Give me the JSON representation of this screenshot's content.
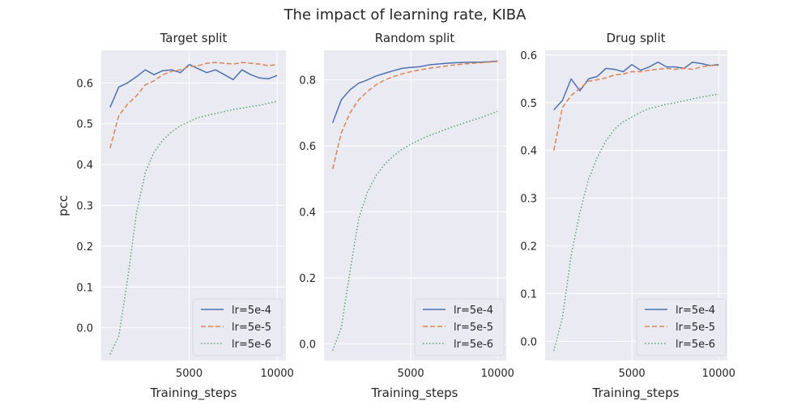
{
  "chart_data": {
    "suptitle": "The impact of learning rate, KIBA",
    "ylabel": "pcc",
    "legend_entries": [
      "lr=5e-4",
      "lr=5e-5",
      "lr=5e-6"
    ],
    "legend_placement": "lower-right",
    "series_colors": [
      "#4c72b0",
      "#dd8452",
      "#55a868"
    ],
    "series_styles": [
      "solid",
      "dashed",
      "dotted"
    ],
    "panels": [
      {
        "type": "line",
        "title": "Target split",
        "xlabel": "Training_steps",
        "xlim": [
          0,
          10500
        ],
        "ylim": [
          -0.08,
          0.68
        ],
        "xticks": [
          5000,
          10000
        ],
        "xtick_labels": [
          "5000",
          "10000"
        ],
        "yticks": [
          0.0,
          0.1,
          0.2,
          0.3,
          0.4,
          0.5,
          0.6
        ],
        "ytick_labels": [
          "0.0",
          "0.1",
          "0.2",
          "0.3",
          "0.4",
          "0.5",
          "0.6"
        ],
        "x": [
          500,
          1000,
          1500,
          2000,
          2500,
          3000,
          3500,
          4000,
          4500,
          5000,
          5500,
          6000,
          6500,
          7000,
          7500,
          8000,
          8500,
          9000,
          9500,
          10000
        ],
        "series": [
          {
            "name": "lr=5e-4",
            "values": [
              0.54,
              0.59,
              0.6,
              0.615,
              0.632,
              0.62,
              0.63,
              0.632,
              0.625,
              0.645,
              0.635,
              0.625,
              0.632,
              0.62,
              0.608,
              0.632,
              0.62,
              0.612,
              0.61,
              0.618
            ]
          },
          {
            "name": "lr=5e-5",
            "values": [
              0.44,
              0.52,
              0.548,
              0.568,
              0.595,
              0.605,
              0.62,
              0.628,
              0.632,
              0.64,
              0.642,
              0.648,
              0.65,
              0.648,
              0.646,
              0.65,
              0.648,
              0.646,
              0.642,
              0.645
            ]
          },
          {
            "name": "lr=5e-6",
            "values": [
              -0.065,
              -0.02,
              0.12,
              0.28,
              0.38,
              0.43,
              0.46,
              0.48,
              0.495,
              0.505,
              0.515,
              0.52,
              0.525,
              0.53,
              0.535,
              0.538,
              0.542,
              0.545,
              0.55,
              0.555
            ]
          }
        ]
      },
      {
        "type": "line",
        "title": "Random split",
        "xlabel": "Training_steps",
        "xlim": [
          0,
          10500
        ],
        "ylim": [
          -0.05,
          0.89
        ],
        "xticks": [
          5000,
          10000
        ],
        "xtick_labels": [
          "5000",
          "10000"
        ],
        "yticks": [
          0.0,
          0.2,
          0.4,
          0.6,
          0.8
        ],
        "ytick_labels": [
          "0.0",
          "0.2",
          "0.4",
          "0.6",
          "0.8"
        ],
        "x": [
          500,
          1000,
          1500,
          2000,
          2500,
          3000,
          3500,
          4000,
          4500,
          5000,
          5500,
          6000,
          6500,
          7000,
          7500,
          8000,
          8500,
          9000,
          9500,
          10000
        ],
        "series": [
          {
            "name": "lr=5e-4",
            "values": [
              0.67,
              0.74,
              0.77,
              0.79,
              0.8,
              0.812,
              0.82,
              0.828,
              0.835,
              0.838,
              0.84,
              0.845,
              0.848,
              0.85,
              0.852,
              0.853,
              0.854,
              0.854,
              0.855,
              0.857
            ]
          },
          {
            "name": "lr=5e-5",
            "values": [
              0.53,
              0.64,
              0.7,
              0.74,
              0.765,
              0.785,
              0.8,
              0.81,
              0.818,
              0.825,
              0.83,
              0.835,
              0.838,
              0.842,
              0.845,
              0.848,
              0.85,
              0.852,
              0.854,
              0.856
            ]
          },
          {
            "name": "lr=5e-6",
            "values": [
              -0.02,
              0.05,
              0.22,
              0.38,
              0.46,
              0.51,
              0.545,
              0.57,
              0.59,
              0.605,
              0.618,
              0.63,
              0.64,
              0.65,
              0.66,
              0.668,
              0.677,
              0.685,
              0.695,
              0.705
            ]
          }
        ]
      },
      {
        "type": "line",
        "title": "Drug split",
        "xlabel": "Training_steps",
        "xlim": [
          0,
          10500
        ],
        "ylim": [
          -0.04,
          0.61
        ],
        "xticks": [
          5000,
          10000
        ],
        "xtick_labels": [
          "5000",
          "10000"
        ],
        "yticks": [
          0.0,
          0.1,
          0.2,
          0.3,
          0.4,
          0.5,
          0.6
        ],
        "ytick_labels": [
          "0.0",
          "0.1",
          "0.2",
          "0.3",
          "0.4",
          "0.5",
          "0.6"
        ],
        "x": [
          500,
          1000,
          1500,
          2000,
          2500,
          3000,
          3500,
          4000,
          4500,
          5000,
          5500,
          6000,
          6500,
          7000,
          7500,
          8000,
          8500,
          9000,
          9500,
          10000
        ],
        "series": [
          {
            "name": "lr=5e-4",
            "values": [
              0.485,
              0.505,
              0.55,
              0.525,
              0.55,
              0.555,
              0.572,
              0.57,
              0.565,
              0.58,
              0.568,
              0.575,
              0.585,
              0.575,
              0.575,
              0.572,
              0.585,
              0.582,
              0.578,
              0.58
            ]
          },
          {
            "name": "lr=5e-5",
            "values": [
              0.4,
              0.49,
              0.515,
              0.53,
              0.545,
              0.548,
              0.552,
              0.558,
              0.56,
              0.565,
              0.565,
              0.568,
              0.57,
              0.572,
              0.57,
              0.572,
              0.57,
              0.575,
              0.578,
              0.578
            ]
          },
          {
            "name": "lr=5e-6",
            "values": [
              -0.02,
              0.05,
              0.18,
              0.27,
              0.34,
              0.385,
              0.42,
              0.445,
              0.46,
              0.47,
              0.48,
              0.488,
              0.492,
              0.497,
              0.5,
              0.504,
              0.508,
              0.512,
              0.515,
              0.518
            ]
          }
        ]
      }
    ]
  }
}
